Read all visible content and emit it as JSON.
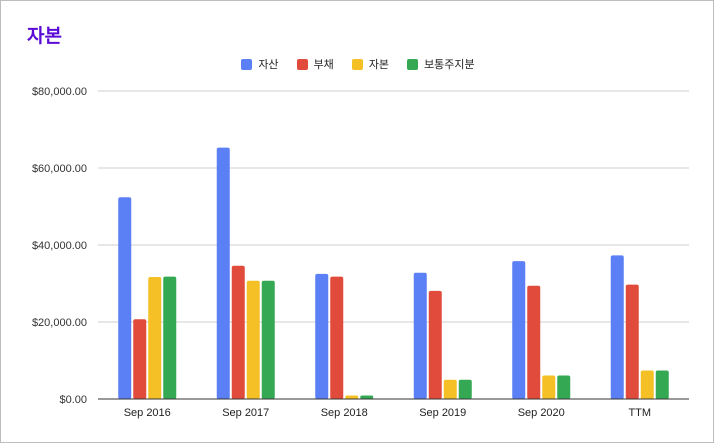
{
  "chart_data": {
    "type": "bar",
    "title": "자본",
    "categories": [
      "Sep 2016",
      "Sep 2017",
      "Sep 2018",
      "Sep 2019",
      "Sep 2020",
      "TTM"
    ],
    "series": [
      {
        "name": "자산",
        "color": "#5b7ff5",
        "values": [
          52400,
          65300,
          32500,
          32800,
          35800,
          37300
        ]
      },
      {
        "name": "부채",
        "color": "#e14b3b",
        "values": [
          20700,
          34600,
          31800,
          28100,
          29400,
          29700
        ]
      },
      {
        "name": "자본",
        "color": "#f4c026",
        "values": [
          31700,
          30700,
          900,
          5000,
          6100,
          7400
        ]
      },
      {
        "name": "보통주지분",
        "color": "#34a853",
        "values": [
          31800,
          30700,
          900,
          5000,
          6100,
          7400
        ]
      }
    ],
    "ylim": [
      0,
      80000
    ],
    "y_ticks": [
      0,
      20000,
      40000,
      60000,
      80000
    ],
    "y_tick_labels": [
      "$0.00",
      "$20,000.00",
      "$40,000.00",
      "$60,000.00",
      "$80,000.00"
    ],
    "xlabel": "",
    "ylabel": "",
    "grid": true,
    "legend_position": "top-center"
  }
}
